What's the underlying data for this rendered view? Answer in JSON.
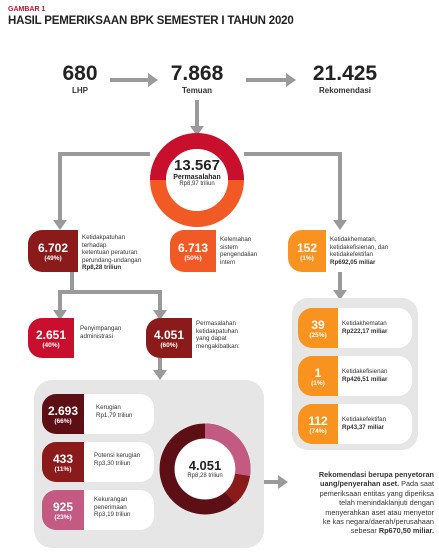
{
  "figure": {
    "label": "GAMBAR 1",
    "title": "HASIL PEMERIKSAAN BPK SEMESTER I TAHUN 2020"
  },
  "top": {
    "lhp": {
      "value": "680",
      "label": "LHP"
    },
    "temuan": {
      "value": "7.868",
      "label": "Temuan"
    },
    "rekomendasi": {
      "value": "21.425",
      "label": "Rekomendasi"
    }
  },
  "center": {
    "value": "13.567",
    "label": "Permasalahan",
    "amount": "Rp8,97 triliun"
  },
  "ketidakpatuhan": {
    "value": "6.702",
    "pct": "(49%)",
    "desc": [
      "Ketidakpatuhan terhadap",
      "ketentuan peraturan",
      "perundang-undangan"
    ],
    "amount": "Rp8,28 triliun"
  },
  "spi": {
    "value": "6.713",
    "pct": "(50%)",
    "desc": [
      "Kelemahan",
      "sistem",
      "pengendalian",
      "intern"
    ]
  },
  "3e": {
    "value": "152",
    "pct": "(1%)",
    "desc": [
      "Ketidakhematan,",
      "ketidakefisienan, dan",
      "ketidakefektifan"
    ],
    "amount": "Rp692,05 miliar"
  },
  "penyimpangan": {
    "value": "2.651",
    "pct": "(40%)",
    "desc": [
      "Penyimpangan",
      "administrasi"
    ]
  },
  "berdampak": {
    "value": "4.051",
    "pct": "(60%)",
    "desc": [
      "Permasalahan",
      "ketidakpatuhan",
      "yang dapat",
      "mengakibatkan:"
    ]
  },
  "hemat": {
    "value": "39",
    "pct": "(25%)",
    "label": "Ketidakhematan",
    "amount": "Rp222,17 miliar"
  },
  "efisien": {
    "value": "1",
    "pct": "(1%)",
    "label": "Ketidakefisienan",
    "amount": "Rp426,51 miliar"
  },
  "efektif": {
    "value": "112",
    "pct": "(74%)",
    "label": "Ketidakefektifan",
    "amount": "Rp43,37 miliar"
  },
  "kerugian": {
    "value": "2.693",
    "pct": "(66%)",
    "label": "Kerugian",
    "amount": "Rp1,79 triliun"
  },
  "potensi": {
    "value": "433",
    "pct": "(11%)",
    "label": "Potensi kerugian",
    "amount": "Rp3,30 triliun"
  },
  "kekurangan": {
    "value": "925",
    "pct": "(23%)",
    "label": [
      "Kekurangan",
      "penerimaan"
    ],
    "amount": "Rp3,19 triliun"
  },
  "donut2": {
    "value": "4.051",
    "amount": "Rp8,28 triliun"
  },
  "note": {
    "title": [
      "Rekomendasi berupa penyetoran",
      "uang/penyerahan aset."
    ],
    "rest": "Pada saat",
    "body": [
      "pemeriksaan entitas yang diperiksa",
      "telah menindaklanjuti dengan",
      "menyerahkan aset atau menyetor",
      "ke kas negara/daerah/perusahaan"
    ],
    "last": "sebesar",
    "amount": "Rp670,50 miliar."
  },
  "colors": {
    "darkred": "#8b1a1a",
    "red": "#c8102e",
    "orangered": "#f15a24",
    "orange": "#f7931e",
    "grey": "#e6e6e6",
    "maroon": "#5c0f14",
    "pink": "#c25a82"
  }
}
